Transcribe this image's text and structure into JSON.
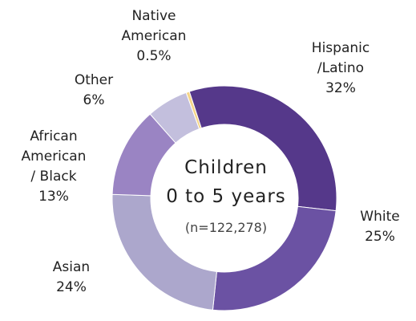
{
  "chart_data": {
    "type": "pie",
    "categories": [
      "Native American",
      "Hispanic /Latino",
      "White",
      "Asian",
      "African American / Black",
      "Other"
    ],
    "categories_lines": [
      [
        "Native",
        "American"
      ],
      [
        "Hispanic",
        "/Latino"
      ],
      [
        "White"
      ],
      [
        "Asian"
      ],
      [
        "African",
        "American",
        "/ Black"
      ],
      [
        "Other"
      ]
    ],
    "values": [
      0.5,
      32,
      25,
      24,
      13,
      6
    ],
    "value_labels": [
      "0.5%",
      "32%",
      "25%",
      "24%",
      "13%",
      "6%"
    ],
    "colors": [
      "#F5D488",
      "#55388A",
      "#6B52A3",
      "#ACA7CC",
      "#9A84C3",
      "#C3BFDD"
    ],
    "center_title": [
      "Children",
      "0 to 5 years"
    ],
    "center_note": "(n=122,278)",
    "donut": true
  }
}
